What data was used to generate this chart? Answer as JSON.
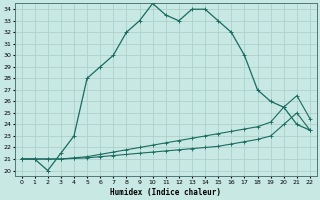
{
  "xlabel": "Humidex (Indice chaleur)",
  "bg_color": "#c8e8e4",
  "grid_color": "#a8ccc8",
  "line_color": "#1a6b60",
  "xlim": [
    -0.5,
    22.5
  ],
  "ylim": [
    19.5,
    34.5
  ],
  "xticks": [
    0,
    1,
    2,
    3,
    4,
    5,
    6,
    7,
    8,
    9,
    10,
    11,
    12,
    13,
    14,
    15,
    16,
    17,
    18,
    19,
    20,
    21,
    22
  ],
  "yticks": [
    20,
    21,
    22,
    23,
    24,
    25,
    26,
    27,
    28,
    29,
    30,
    31,
    32,
    33,
    34
  ],
  "line1_x": [
    0,
    1,
    2,
    3,
    4,
    5,
    6,
    7,
    8,
    9,
    10,
    11,
    12,
    13,
    14,
    15,
    16,
    17,
    18,
    19,
    20,
    21,
    22
  ],
  "line1_y": [
    21.0,
    21.0,
    20.0,
    21.5,
    23.0,
    28.0,
    29.0,
    30.0,
    32.0,
    33.0,
    34.5,
    33.5,
    33.0,
    34.0,
    34.0,
    33.0,
    32.0,
    30.0,
    27.0,
    26.0,
    25.5,
    24.0,
    23.5
  ],
  "line2_x": [
    0,
    1,
    2,
    3,
    4,
    5,
    6,
    7,
    8,
    9,
    10,
    11,
    12,
    13,
    14,
    15,
    16,
    17,
    18,
    19,
    20,
    21,
    22
  ],
  "line2_y": [
    21.0,
    21.0,
    21.0,
    21.0,
    21.1,
    21.2,
    21.4,
    21.6,
    21.8,
    22.0,
    22.2,
    22.4,
    22.6,
    22.8,
    23.0,
    23.2,
    23.4,
    23.6,
    23.8,
    24.2,
    25.5,
    26.5,
    24.5
  ],
  "line3_x": [
    0,
    1,
    2,
    3,
    4,
    5,
    6,
    7,
    8,
    9,
    10,
    11,
    12,
    13,
    14,
    15,
    16,
    17,
    18,
    19,
    20,
    21,
    22
  ],
  "line3_y": [
    21.0,
    21.0,
    21.0,
    21.0,
    21.05,
    21.1,
    21.2,
    21.3,
    21.4,
    21.5,
    21.6,
    21.7,
    21.8,
    21.9,
    22.0,
    22.1,
    22.3,
    22.5,
    22.7,
    23.0,
    24.0,
    25.0,
    23.5
  ]
}
